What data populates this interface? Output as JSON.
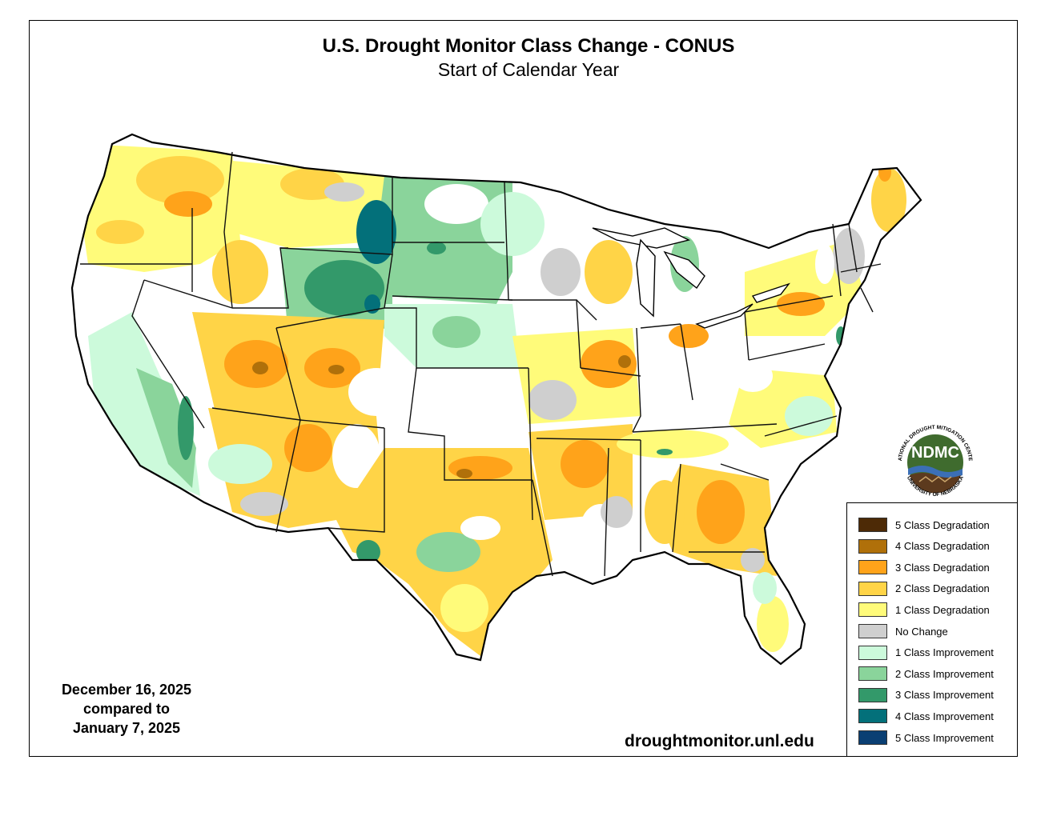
{
  "title": "U.S. Drought Monitor Class Change - CONUS",
  "subtitle": "Start of Calendar Year",
  "date_line1": "December 16, 2025",
  "date_line2": "compared to",
  "date_line3": "January 7, 2025",
  "website": "droughtmonitor.unl.edu",
  "logo": {
    "abbr": "NDMC",
    "ring_top": "NATIONAL DROUGHT MITIGATION CENTER",
    "ring_bottom": "UNIVERSITY OF NEBRASKA"
  },
  "colors": {
    "deg5": "#4d2a06",
    "deg4": "#b0700a",
    "deg3": "#ffa31a",
    "deg2": "#ffd447",
    "deg1": "#fffb7a",
    "nochange": "#cfcfcf",
    "imp1": "#ccfadb",
    "imp2": "#8ad49b",
    "imp3": "#33996a",
    "imp4": "#03707a",
    "imp5": "#0a3f73"
  },
  "legend": [
    {
      "label": "5 Class Degradation",
      "color": "#4d2a06"
    },
    {
      "label": "4 Class Degradation",
      "color": "#b0700a"
    },
    {
      "label": "3 Class Degradation",
      "color": "#ffa31a"
    },
    {
      "label": "2 Class Degradation",
      "color": "#ffd447"
    },
    {
      "label": "1 Class Degradation",
      "color": "#fffb7a"
    },
    {
      "label": "No Change",
      "color": "#cfcfcf"
    },
    {
      "label": "1 Class Improvement",
      "color": "#ccfadb"
    },
    {
      "label": "2 Class Improvement",
      "color": "#8ad49b"
    },
    {
      "label": "3 Class Improvement",
      "color": "#33996a"
    },
    {
      "label": "4 Class Improvement",
      "color": "#03707a"
    },
    {
      "label": "5 Class Improvement",
      "color": "#0a3f73"
    }
  ]
}
